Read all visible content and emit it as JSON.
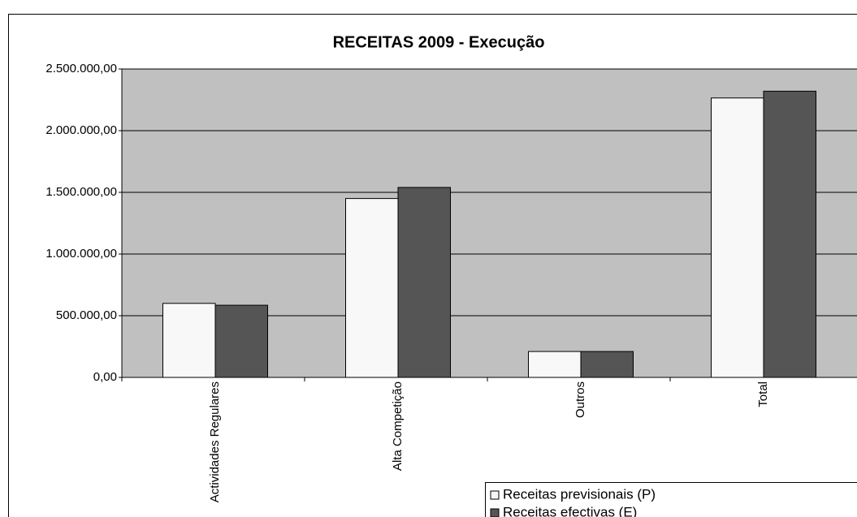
{
  "chart_data": {
    "type": "bar",
    "title": "RECEITAS 2009 - Execução",
    "categories": [
      "Actividades Regulares",
      "Alta Competição",
      "Outros",
      "Total"
    ],
    "series": [
      {
        "name": "Receitas previsionais (P)",
        "color": "#f8f8f8",
        "values": [
          600000,
          1450000,
          210000,
          2265000
        ]
      },
      {
        "name": "Receitas efectivas (E)",
        "color": "#555555",
        "values": [
          585000,
          1540000,
          210000,
          2320000
        ]
      }
    ],
    "ylim": [
      0,
      2500000
    ],
    "yticks": [
      {
        "value": 0,
        "label": "0,00"
      },
      {
        "value": 500000,
        "label": "500.000,00"
      },
      {
        "value": 1000000,
        "label": "1.000.000,00"
      },
      {
        "value": 1500000,
        "label": "1.500.000,00"
      },
      {
        "value": 2000000,
        "label": "2.000.000,00"
      },
      {
        "value": 2500000,
        "label": "2.500.000,00"
      }
    ],
    "grid": true,
    "plot_background": "#c0c0c0",
    "legend": "bottom-right"
  }
}
